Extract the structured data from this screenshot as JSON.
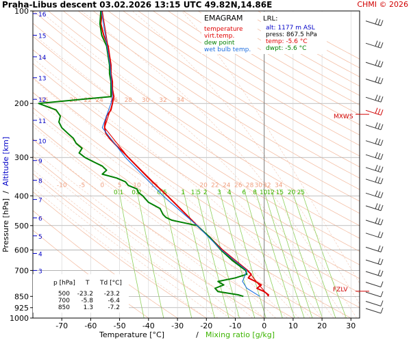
{
  "header": {
    "title": "Praha-Libus   descent   03.02.2026 13:15 UTC  49.82N,14.86E",
    "copyright": "CHMI © 2026"
  },
  "legend_box": {
    "title": "EMAGRAM",
    "items": [
      {
        "label": "temperature",
        "color": "#e00000"
      },
      {
        "label": "virt.temp.",
        "color": "#e00000"
      },
      {
        "label": "dew point",
        "color": "#008000"
      },
      {
        "label": "wet bulb temp.",
        "color": "#1e6ee0"
      }
    ]
  },
  "lrl_box": {
    "title": "LRL:",
    "lines": [
      {
        "text": "alt: 1177 m ASL",
        "color": "#0000c8"
      },
      {
        "text": "press: 867.5 hPa",
        "color": "#000000"
      },
      {
        "text": "temp: -5.6 °C",
        "color": "#e00000"
      },
      {
        "text": "dwpt: -5.6 °C",
        "color": "#008000"
      }
    ]
  },
  "table": {
    "headers": [
      "p [hPa]",
      "T",
      "Td [°C]"
    ],
    "rows": [
      [
        "500",
        "-23.2",
        "-23.2"
      ],
      [
        "700",
        "-5.8",
        "-6.4"
      ],
      [
        "850",
        "1.3",
        "-7.2"
      ]
    ]
  },
  "markers": {
    "mxws": "MXWS",
    "fzlv": "FZLV"
  },
  "chart_data": {
    "type": "line",
    "xlabel": "Temperature [°C]",
    "xlabel_sep": "/",
    "xlabel2": "Mixing ratio [g/kg]",
    "ylabel": "Pressure [hPa]",
    "ylabel_sep": "/",
    "ylabel2": "Altitude [km]",
    "x_ticks": [
      "-70",
      "-60",
      "-50",
      "-40",
      "-30",
      "-20",
      "-10",
      "0",
      "10",
      "20",
      "30"
    ],
    "x_tick_values": [
      -70,
      -60,
      -50,
      -40,
      -30,
      -20,
      -10,
      0,
      10,
      20,
      30
    ],
    "xlim": [
      -80,
      33
    ],
    "ylim": [
      1000,
      100
    ],
    "y_scale": "log",
    "pressure_ticks": [
      100,
      200,
      300,
      400,
      500,
      600,
      700,
      850,
      925,
      1000
    ],
    "pressure_labels": [
      "100",
      "200",
      "300",
      "400",
      "500",
      "600",
      "700",
      "850",
      "925",
      "1000"
    ],
    "altitude_ticks": [
      {
        "km": "2",
        "p": 793
      },
      {
        "km": "3",
        "p": 700
      },
      {
        "km": "4",
        "p": 616
      },
      {
        "km": "5",
        "p": 540
      },
      {
        "km": "6",
        "p": 472
      },
      {
        "km": "7",
        "p": 411
      },
      {
        "km": "8",
        "p": 356
      },
      {
        "km": "9",
        "p": 307
      },
      {
        "km": "10",
        "p": 264
      },
      {
        "km": "11",
        "p": 227
      },
      {
        "km": "12",
        "p": 194
      },
      {
        "km": "13",
        "p": 165
      },
      {
        "km": "14",
        "p": 141
      },
      {
        "km": "15",
        "p": 120
      },
      {
        "km": "16",
        "p": 102
      }
    ],
    "theta_labels_200": [
      "15",
      "20",
      "22",
      "24",
      "26",
      "28",
      "30",
      "32",
      "34"
    ],
    "theta_labels_400": [
      "-10",
      "-5",
      "0",
      "5",
      "10",
      "15",
      "20",
      "22",
      "24",
      "26",
      "28",
      "30",
      "32",
      "34"
    ],
    "mixing_ratio_labels": [
      "0.1",
      "0.2",
      "0.5",
      "1",
      "1.5",
      "2",
      "3",
      "4",
      "6",
      "8",
      "10",
      "12",
      "15",
      "20",
      "25"
    ],
    "series": [
      {
        "name": "temperature",
        "color": "#e00000",
        "points": [
          [
            100,
            -56
          ],
          [
            110,
            -56.5
          ],
          [
            120,
            -55.5
          ],
          [
            130,
            -54
          ],
          [
            140,
            -53.5
          ],
          [
            150,
            -53
          ],
          [
            160,
            -53
          ],
          [
            170,
            -52.5
          ],
          [
            180,
            -52.5
          ],
          [
            190,
            -52
          ],
          [
            200,
            -52.5
          ],
          [
            210,
            -53
          ],
          [
            220,
            -54.5
          ],
          [
            230,
            -55
          ],
          [
            240,
            -55.2
          ],
          [
            250,
            -54.8
          ],
          [
            260,
            -53.5
          ],
          [
            275,
            -51
          ],
          [
            290,
            -48.5
          ],
          [
            300,
            -47
          ],
          [
            350,
            -40
          ],
          [
            400,
            -33.5
          ],
          [
            450,
            -28
          ],
          [
            500,
            -23.2
          ],
          [
            550,
            -18.5
          ],
          [
            600,
            -14.5
          ],
          [
            650,
            -10.5
          ],
          [
            700,
            -5.8
          ],
          [
            720,
            -4.5
          ],
          [
            740,
            -5.5
          ],
          [
            760,
            -3
          ],
          [
            780,
            -1
          ],
          [
            800,
            -2.5
          ],
          [
            820,
            0
          ],
          [
            840,
            1.5
          ],
          [
            850,
            1.3
          ]
        ]
      },
      {
        "name": "virt.temp.",
        "color": "#e00000",
        "points": [
          [
            100,
            -56
          ],
          [
            150,
            -53
          ],
          [
            200,
            -52.5
          ],
          [
            240,
            -55.2
          ],
          [
            300,
            -47
          ],
          [
            400,
            -33.5
          ],
          [
            500,
            -23.1
          ],
          [
            600,
            -14.3
          ],
          [
            700,
            -5.6
          ],
          [
            760,
            -2.8
          ],
          [
            820,
            0.2
          ],
          [
            850,
            1.5
          ]
        ]
      },
      {
        "name": "dew point",
        "color": "#008000",
        "points": [
          [
            100,
            -56.5
          ],
          [
            110,
            -56.8
          ],
          [
            120,
            -56.2
          ],
          [
            130,
            -54.5
          ],
          [
            140,
            -54
          ],
          [
            150,
            -53.5
          ],
          [
            160,
            -53.5
          ],
          [
            170,
            -53
          ],
          [
            180,
            -53
          ],
          [
            190,
            -53
          ],
          [
            200,
            -78
          ],
          [
            210,
            -72
          ],
          [
            220,
            -70.5
          ],
          [
            230,
            -71
          ],
          [
            240,
            -70
          ],
          [
            250,
            -68
          ],
          [
            260,
            -66
          ],
          [
            270,
            -65
          ],
          [
            280,
            -63
          ],
          [
            290,
            -64
          ],
          [
            300,
            -62
          ],
          [
            310,
            -59
          ],
          [
            320,
            -56
          ],
          [
            330,
            -54.5
          ],
          [
            340,
            -56
          ],
          [
            350,
            -51
          ],
          [
            360,
            -48
          ],
          [
            370,
            -47
          ],
          [
            380,
            -44
          ],
          [
            390,
            -43.5
          ],
          [
            400,
            -42
          ],
          [
            420,
            -40
          ],
          [
            440,
            -36
          ],
          [
            460,
            -35
          ],
          [
            470,
            -34
          ],
          [
            480,
            -32
          ],
          [
            500,
            -23.2
          ],
          [
            550,
            -18.5
          ],
          [
            600,
            -15
          ],
          [
            650,
            -11
          ],
          [
            700,
            -6.4
          ],
          [
            720,
            -6
          ],
          [
            740,
            -10
          ],
          [
            760,
            -16
          ],
          [
            780,
            -14
          ],
          [
            800,
            -17
          ],
          [
            820,
            -16
          ],
          [
            840,
            -9
          ],
          [
            850,
            -7.2
          ]
        ]
      },
      {
        "name": "wet bulb temp.",
        "color": "#1e6ee0",
        "points": [
          [
            100,
            -56.3
          ],
          [
            150,
            -53.3
          ],
          [
            190,
            -52.5
          ],
          [
            200,
            -53
          ],
          [
            240,
            -56
          ],
          [
            300,
            -48
          ],
          [
            400,
            -35
          ],
          [
            500,
            -23.2
          ],
          [
            600,
            -14.8
          ],
          [
            700,
            -6
          ],
          [
            740,
            -7
          ],
          [
            760,
            -7.5
          ],
          [
            800,
            -6
          ],
          [
            850,
            -1.5
          ]
        ]
      }
    ],
    "markers": [
      {
        "name": "MXWS",
        "p": 217
      },
      {
        "name": "FZLV",
        "p": 818
      }
    ]
  }
}
